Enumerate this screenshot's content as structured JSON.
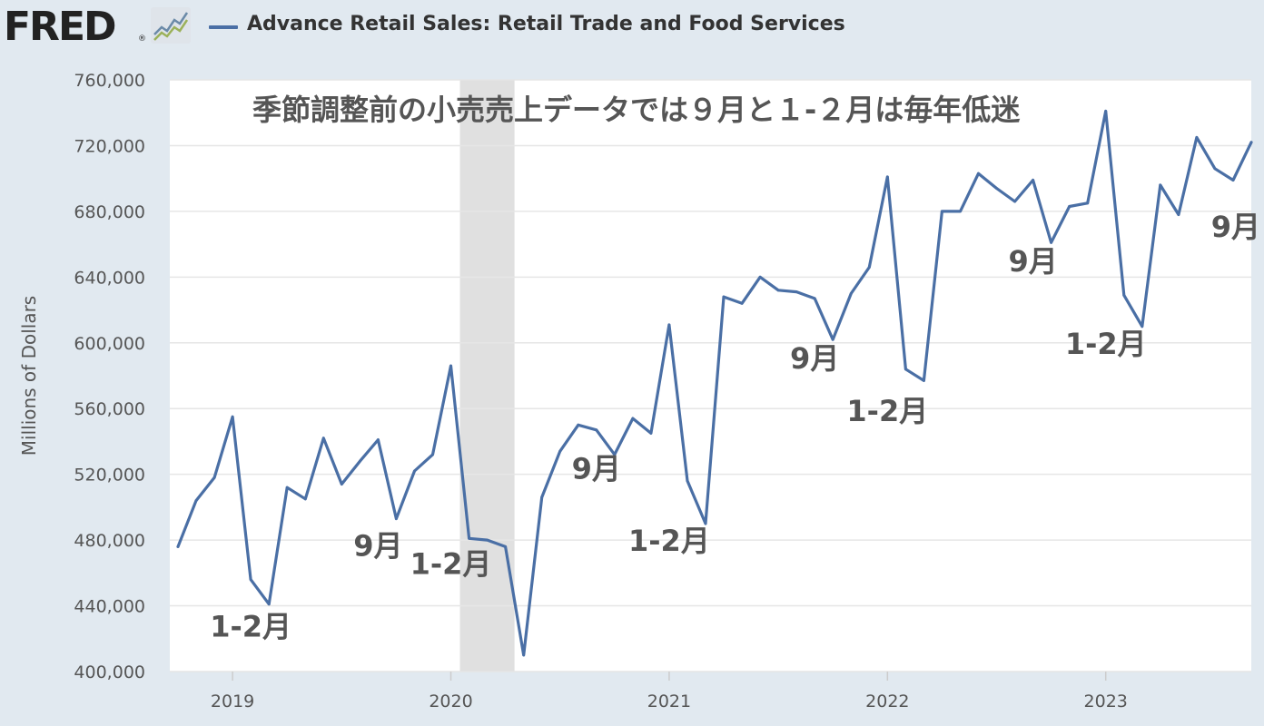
{
  "header": {
    "logo_text": "FRED",
    "logo_reg": "®",
    "legend_label": "Advance Retail Sales: Retail Trade and Food Services",
    "legend_color": "#4a6fa5"
  },
  "chart_data": {
    "type": "line",
    "title": "季節調整前の小売売上データでは９月と１-２月は毎年低迷",
    "ylabel": "Millions of Dollars",
    "xlabel": "",
    "ylim": [
      400000,
      760000
    ],
    "yticks": [
      400000,
      440000,
      480000,
      520000,
      560000,
      600000,
      640000,
      680000,
      720000,
      760000
    ],
    "ytick_labels": [
      "400,000",
      "440,000",
      "480,000",
      "520,000",
      "560,000",
      "600,000",
      "640,000",
      "680,000",
      "720,000",
      "760,000"
    ],
    "xlim": [
      "2018-10",
      "2023-09"
    ],
    "xticks": [
      "2019-01",
      "2020-01",
      "2021-01",
      "2022-01",
      "2023-01"
    ],
    "xtick_labels": [
      "2019",
      "2020",
      "2021",
      "2022",
      "2023"
    ],
    "grid": true,
    "recession_shading": [
      "2020-02",
      "2020-04"
    ],
    "recession_color": "#e0e0e0",
    "series": [
      {
        "name": "Advance Retail Sales: Retail Trade and Food Services",
        "color": "#4a6fa5",
        "x": [
          "2018-10",
          "2018-11",
          "2018-12",
          "2019-01",
          "2019-02",
          "2019-03",
          "2019-04",
          "2019-05",
          "2019-06",
          "2019-07",
          "2019-08",
          "2019-09",
          "2019-10",
          "2019-11",
          "2019-12",
          "2020-01",
          "2020-02",
          "2020-03",
          "2020-04",
          "2020-05",
          "2020-06",
          "2020-07",
          "2020-08",
          "2020-09",
          "2020-10",
          "2020-11",
          "2020-12",
          "2021-01",
          "2021-02",
          "2021-03",
          "2021-04",
          "2021-05",
          "2021-06",
          "2021-07",
          "2021-08",
          "2021-09",
          "2021-10",
          "2021-11",
          "2021-12",
          "2022-01",
          "2022-02",
          "2022-03",
          "2022-04",
          "2022-05",
          "2022-06",
          "2022-07",
          "2022-08",
          "2022-09",
          "2022-10",
          "2022-11",
          "2022-12",
          "2023-01",
          "2023-02",
          "2023-03",
          "2023-04",
          "2023-05",
          "2023-06",
          "2023-07",
          "2023-08",
          "2023-09"
        ],
        "values": [
          476000,
          504000,
          518000,
          555000,
          456000,
          441000,
          512000,
          505000,
          542000,
          514000,
          528000,
          541000,
          493000,
          522000,
          532000,
          586000,
          481000,
          480000,
          476000,
          410000,
          506000,
          534000,
          550000,
          547000,
          532000,
          554000,
          545000,
          611000,
          516000,
          490000,
          628000,
          624000,
          640000,
          632000,
          631000,
          627000,
          602000,
          630000,
          646000,
          701000,
          584000,
          577000,
          680000,
          680000,
          703000,
          694000,
          686000,
          699000,
          661000,
          683000,
          685000,
          741000,
          629000,
          610000,
          696000,
          678000,
          725000,
          706000,
          699000,
          722000
        ]
      }
    ],
    "annotations": [
      {
        "text": "1-2月",
        "x": "2019-02",
        "y": 428000
      },
      {
        "text": "9月",
        "x": "2019-09",
        "y": 477000
      },
      {
        "text": "1-2月",
        "x": "2020-01",
        "y": 466000
      },
      {
        "text": "9月",
        "x": "2020-09",
        "y": 524000
      },
      {
        "text": "1-2月",
        "x": "2021-01",
        "y": 480000
      },
      {
        "text": "9月",
        "x": "2021-09",
        "y": 591000
      },
      {
        "text": "1-2月",
        "x": "2022-01",
        "y": 559000
      },
      {
        "text": "9月",
        "x": "2022-09",
        "y": 650000
      },
      {
        "text": "1-2月",
        "x": "2023-01",
        "y": 600000
      },
      {
        "text": "9月",
        "x": "2023-09",
        "y": 671000
      }
    ]
  }
}
